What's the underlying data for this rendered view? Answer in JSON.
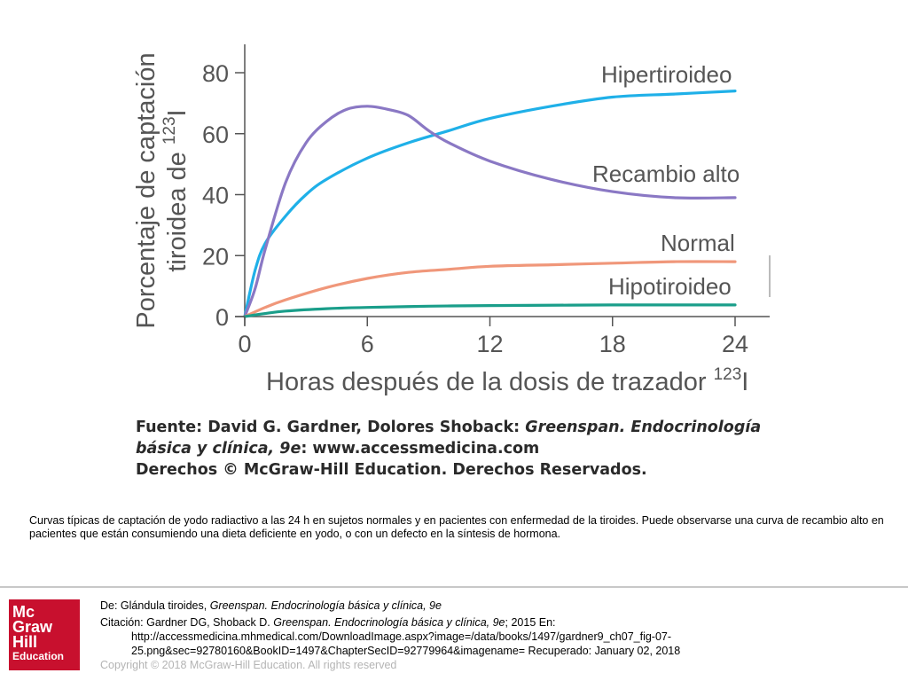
{
  "chart_data": {
    "type": "line",
    "title": "",
    "xlabel_main": "Horas después de la dosis de trazador",
    "xlabel_sup": "123",
    "xlabel_tail": "I",
    "ylabel_line1": "Porcentaje de captación",
    "ylabel_line2_main": "tiroidea de",
    "ylabel_line2_sup": "123",
    "ylabel_line2_tail": "I",
    "xlim": [
      0,
      24
    ],
    "ylim": [
      0,
      80
    ],
    "x_ticks": [
      "0",
      "6",
      "12",
      "18",
      "24"
    ],
    "y_ticks": [
      "0",
      "20",
      "40",
      "60",
      "80"
    ],
    "grid": false,
    "series": [
      {
        "name": "Hipertiroideo",
        "color": "#1fb0e8",
        "x": [
          0,
          0.5,
          1,
          2,
          3,
          4,
          6,
          8,
          10,
          12,
          15,
          18,
          21,
          24
        ],
        "y": [
          0,
          15,
          24,
          33,
          40,
          45,
          52,
          57,
          61,
          65,
          69,
          72,
          73,
          74
        ]
      },
      {
        "name": "Recambio alto",
        "color": "#8a78c4",
        "x": [
          0,
          0.5,
          1,
          2,
          3,
          4,
          5,
          6,
          7,
          8,
          9,
          10,
          12,
          15,
          18,
          21,
          24
        ],
        "y": [
          0,
          9,
          22,
          44,
          57,
          64,
          68,
          69,
          68,
          66,
          61,
          57,
          51,
          45,
          41,
          39,
          39
        ]
      },
      {
        "name": "Normal",
        "color": "#f0977a",
        "x": [
          0,
          1,
          2,
          4,
          6,
          8,
          10,
          12,
          15,
          18,
          21,
          24
        ],
        "y": [
          0,
          3,
          5.5,
          9.5,
          12.5,
          14.5,
          15.5,
          16.5,
          17,
          17.5,
          18,
          18
        ]
      },
      {
        "name": "Hipotiroideo",
        "color": "#1a9e8a",
        "x": [
          0,
          1,
          2,
          4,
          6,
          9,
          12,
          18,
          24
        ],
        "y": [
          0,
          1,
          1.8,
          2.6,
          3,
          3.4,
          3.6,
          3.8,
          3.8
        ]
      }
    ]
  },
  "source": {
    "line1_prefix": "Fuente: David G. Gardner, Dolores Shoback: ",
    "line1_italic": "Greenspan. Endocrinología",
    "line2_italic": "básica y clínica, 9e",
    "line2_suffix": ": www.accessmedicina.com",
    "line3": "Derechos © McGraw-Hill Education. Derechos Reservados."
  },
  "caption": "Curvas típicas de captación de yodo radiactivo a las 24 h en sujetos normales y en pacientes con enfermedad de la tiroides. Puede observarse una curva de recambio alto en pacientes que están consumiendo una dieta deficiente en yodo, o con un defecto en la síntesis de hormona.",
  "logo": {
    "line1": "Mc",
    "line2": "Graw",
    "line3": "Hill",
    "line4": "Education"
  },
  "citation": {
    "de_prefix": "De: Glándula tiroides, ",
    "de_italic": "Greenspan. Endocrinología básica y clínica, 9e",
    "cit_prefix": "Citación: Gardner DG, Shoback D. ",
    "cit_italic": "Greenspan. Endocrinología básica y clínica, 9e",
    "cit_suffix": "; 2015 En:",
    "url_line1": "http://accessmedicina.mhmedical.com/DownloadImage.aspx?image=/data/books/1497/gardner9_ch07_fig-07-",
    "url_line2": "25.png&sec=92780160&BookID=1497&ChapterSecID=92779964&imagename= Recuperado: January 02, 2018",
    "copyright": "Copyright © 2018 McGraw-Hill Education. All rights reserved"
  }
}
